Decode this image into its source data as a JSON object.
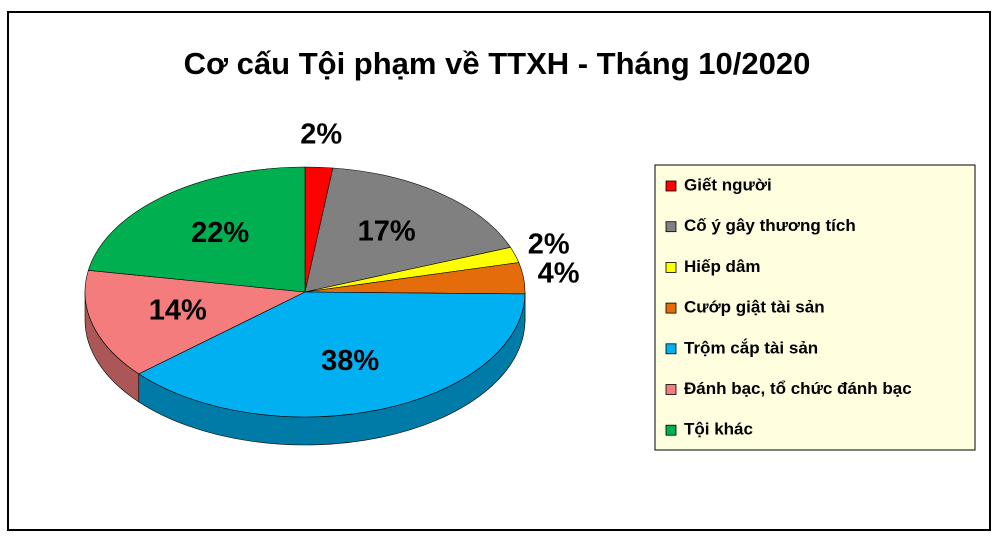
{
  "chart_data": {
    "type": "pie",
    "title": "Cơ cấu Tội phạm về TTXH - Tháng 10/2020",
    "categories": [
      "Giết người",
      "Cố ý gây thương tích",
      "Hiếp dâm",
      "Cướp giật tài sản",
      "Trộm cắp tài sản",
      "Đánh bạc, tổ chức đánh bạc",
      "Tội khác"
    ],
    "values": [
      2,
      17,
      2,
      4,
      38,
      14,
      22
    ],
    "value_labels": [
      "2%",
      "17%",
      "2%",
      "4%",
      "38%",
      "14%",
      "22%"
    ],
    "colors": [
      "#ff0000",
      "#808080",
      "#ffff00",
      "#e46c0a",
      "#00b0f0",
      "#f47c7c",
      "#00b050"
    ],
    "legend": "right"
  }
}
